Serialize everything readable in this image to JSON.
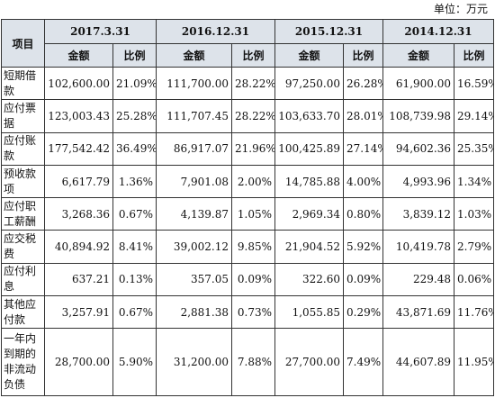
{
  "unit_label": "单位：万元",
  "header": {
    "item_label": "项目",
    "periods": [
      "2017.3.31",
      "2016.12.31",
      "2015.12.31",
      "2014.12.31"
    ],
    "amount_label": "金额",
    "ratio_label": "比例"
  },
  "rows": [
    {
      "name": "短期借款",
      "values": [
        "102,600.00",
        "21.09%",
        "111,700.00",
        "28.22%",
        "97,250.00",
        "26.28%",
        "61,900.00",
        "16.59%"
      ]
    },
    {
      "name": "应付票据",
      "values": [
        "123,003.43",
        "25.28%",
        "111,707.45",
        "28.22%",
        "103,633.70",
        "28.01%",
        "108,739.98",
        "29.14%"
      ]
    },
    {
      "name": "应付账款",
      "values": [
        "177,542.42",
        "36.49%",
        "86,917.07",
        "21.96%",
        "100,425.89",
        "27.14%",
        "94,602.36",
        "25.35%"
      ]
    },
    {
      "name": "预收款项",
      "values": [
        "6,617.79",
        "1.36%",
        "7,901.08",
        "2.00%",
        "14,785.88",
        "4.00%",
        "4,993.96",
        "1.34%"
      ]
    },
    {
      "name": "应付职工薪酬",
      "values": [
        "3,268.36",
        "0.67%",
        "4,139.87",
        "1.05%",
        "2,969.34",
        "0.80%",
        "3,839.12",
        "1.03%"
      ]
    },
    {
      "name": "应交税费",
      "values": [
        "40,894.92",
        "8.41%",
        "39,002.12",
        "9.85%",
        "21,904.52",
        "5.92%",
        "10,419.78",
        "2.79%"
      ]
    },
    {
      "name": "应付利息",
      "values": [
        "637.21",
        "0.13%",
        "357.05",
        "0.09%",
        "322.60",
        "0.09%",
        "229.48",
        "0.06%"
      ]
    },
    {
      "name": "其他应付款",
      "values": [
        "3,257.91",
        "0.67%",
        "2,881.38",
        "0.73%",
        "1,055.85",
        "0.29%",
        "43,871.69",
        "11.76%"
      ]
    },
    {
      "name": "一年内到期的非流动负债",
      "values": [
        "28,700.00",
        "5.90%",
        "31,200.00",
        "7.88%",
        "27,700.00",
        "7.49%",
        "44,607.89",
        "11.95%"
      ]
    }
  ]
}
